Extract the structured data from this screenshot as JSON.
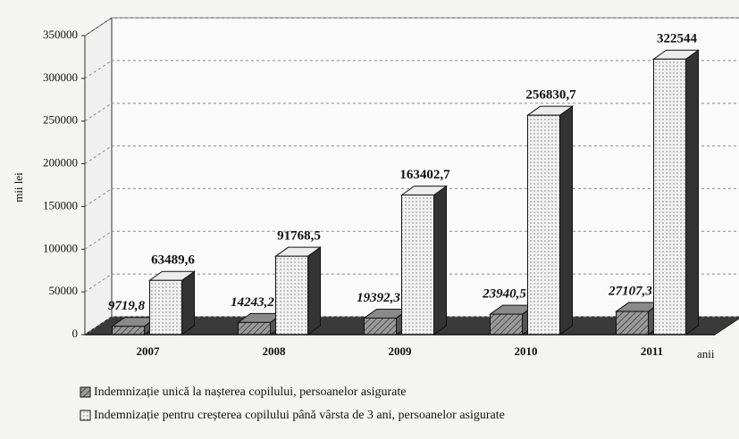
{
  "chart_data": {
    "type": "bar3d",
    "y_label": "mii lei",
    "x_label": "anii",
    "categories": [
      "2007",
      "2008",
      "2009",
      "2010",
      "2011"
    ],
    "series": [
      {
        "name": "Indemnizație unică la nașterea copilului, persoanelor asigurate",
        "color": "#8a8a8a",
        "values": [
          9719.8,
          14243.2,
          19392.3,
          23940.5,
          27107.3
        ],
        "value_labels": [
          "9719,8",
          "14243,2",
          "19392,3",
          "23940,5",
          "27107,3"
        ]
      },
      {
        "name": "Indemnizație pentru creșterea copilului până vârsta de 3 ani, persoanelor asigurate",
        "color": "#ececec",
        "values": [
          63489.6,
          91768.5,
          163402.7,
          256830.7,
          322544
        ],
        "value_labels": [
          "63489,6",
          "91768,5",
          "163402,7",
          "256830,7",
          "322544"
        ]
      }
    ],
    "ylim": [
      0,
      350000
    ],
    "yticks": [
      0,
      50000,
      100000,
      150000,
      200000,
      250000,
      300000,
      350000
    ],
    "grid": true
  }
}
